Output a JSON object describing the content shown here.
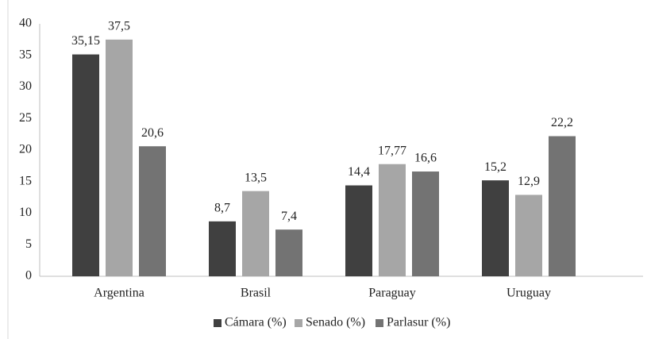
{
  "chart_data": {
    "type": "bar",
    "categories": [
      "Argentina",
      "Brasil",
      "Paraguay",
      "Uruguay"
    ],
    "series": [
      {
        "name": "Cámara (%)",
        "color": "#404040",
        "values": [
          35.15,
          8.7,
          14.4,
          15.2
        ],
        "value_labels": [
          "35,15",
          "8,7",
          "14,4",
          "15,2"
        ]
      },
      {
        "name": "Senado (%)",
        "color": "#a6a6a6",
        "values": [
          37.5,
          13.5,
          17.77,
          12.9
        ],
        "value_labels": [
          "37,5",
          "13,5",
          "17,77",
          "12,9"
        ]
      },
      {
        "name": "Parlasur (%)",
        "color": "#737373",
        "values": [
          20.6,
          7.4,
          16.6,
          22.2
        ],
        "value_labels": [
          "20,6",
          "7,4",
          "16,6",
          "22,2"
        ]
      }
    ],
    "ylim": [
      0,
      40
    ],
    "yticks": [
      0,
      5,
      10,
      15,
      20,
      25,
      30,
      35,
      40
    ],
    "grid": false,
    "legend": "bottom"
  }
}
